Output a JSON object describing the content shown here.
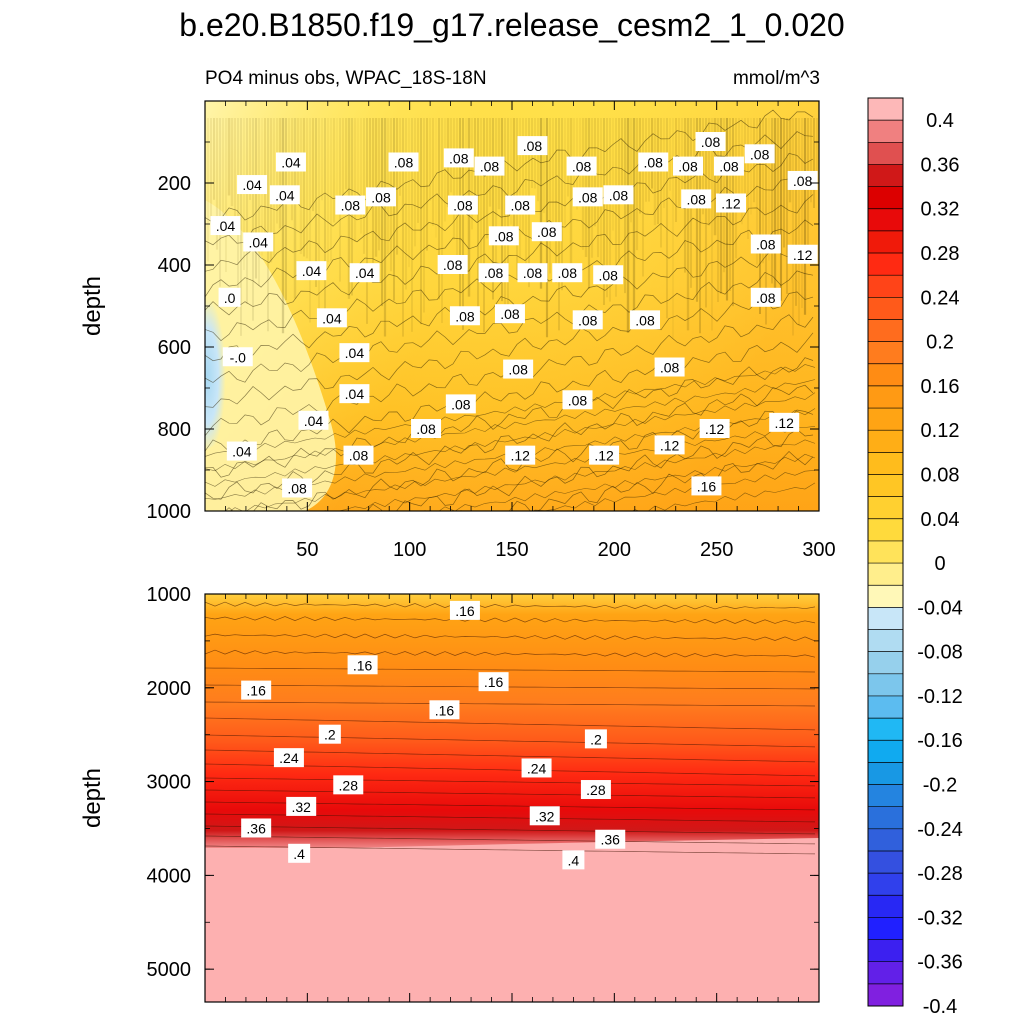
{
  "title": "b.e20.B1850.f19_g17.release_cesm2_1_0.020",
  "chart_data": {
    "type": "heatmap",
    "title": "b.e20.B1850.f19_g17.release_cesm2_1_0.020",
    "subtitle_left": "PO4 minus obs, WPAC_18S-18N",
    "subtitle_right": "mmol/m^3",
    "variable": "PO4 minus obs",
    "region": "WPAC_18S-18N",
    "units": "mmol/m^3",
    "xlim": [
      0,
      300
    ],
    "x_ticks": [
      50,
      100,
      150,
      200,
      250,
      300
    ],
    "x_tick_labels": [
      "50",
      "100",
      "150",
      "200",
      "250",
      "300"
    ],
    "panels": [
      {
        "name": "upper",
        "ylabel": "depth",
        "ylim": [
          0,
          1000
        ],
        "y_ticks": [
          200,
          400,
          600,
          800,
          1000
        ],
        "y_tick_labels": [
          "200",
          "400",
          "600",
          "800",
          "1000"
        ],
        "contour_labels": [
          {
            "text": ".08",
            "x": 247,
            "y": 100
          },
          {
            "text": ".08",
            "x": 160,
            "y": 110
          },
          {
            "text": ".08",
            "x": 271,
            "y": 130
          },
          {
            "text": ".04",
            "x": 42,
            "y": 150
          },
          {
            "text": ".08",
            "x": 97,
            "y": 150
          },
          {
            "text": ".08",
            "x": 124,
            "y": 140
          },
          {
            "text": ".08",
            "x": 139,
            "y": 160
          },
          {
            "text": ".08",
            "x": 184,
            "y": 160
          },
          {
            "text": ".08",
            "x": 219,
            "y": 150
          },
          {
            "text": ".08",
            "x": 236,
            "y": 160
          },
          {
            "text": ".08",
            "x": 256,
            "y": 160
          },
          {
            "text": ".04",
            "x": 23,
            "y": 205
          },
          {
            "text": ".04",
            "x": 39,
            "y": 230
          },
          {
            "text": ".08",
            "x": 71,
            "y": 255
          },
          {
            "text": ".08",
            "x": 86,
            "y": 235
          },
          {
            "text": ".08",
            "x": 126,
            "y": 255
          },
          {
            "text": ".08",
            "x": 154,
            "y": 255
          },
          {
            "text": ".08",
            "x": 187,
            "y": 235
          },
          {
            "text": ".08",
            "x": 202,
            "y": 230
          },
          {
            "text": ".08",
            "x": 240,
            "y": 240
          },
          {
            "text": ".12",
            "x": 257,
            "y": 250
          },
          {
            "text": ".08",
            "x": 292,
            "y": 195
          },
          {
            "text": ".04",
            "x": 10,
            "y": 305
          },
          {
            "text": ".04",
            "x": 26,
            "y": 345
          },
          {
            "text": ".08",
            "x": 146,
            "y": 330
          },
          {
            "text": ".08",
            "x": 167,
            "y": 320
          },
          {
            "text": ".08",
            "x": 274,
            "y": 350
          },
          {
            "text": ".12",
            "x": 292,
            "y": 375
          },
          {
            "text": ".04",
            "x": 52,
            "y": 415
          },
          {
            "text": ".04",
            "x": 78,
            "y": 420
          },
          {
            "text": ".08",
            "x": 121,
            "y": 400
          },
          {
            "text": ".08",
            "x": 141,
            "y": 420
          },
          {
            "text": ".08",
            "x": 160,
            "y": 420
          },
          {
            "text": ".08",
            "x": 177,
            "y": 420
          },
          {
            "text": ".08",
            "x": 197,
            "y": 425
          },
          {
            "text": ".0",
            "x": 12,
            "y": 480
          },
          {
            "text": ".04",
            "x": 62,
            "y": 530
          },
          {
            "text": ".08",
            "x": 127,
            "y": 525
          },
          {
            "text": ".08",
            "x": 149,
            "y": 520
          },
          {
            "text": ".08",
            "x": 187,
            "y": 535
          },
          {
            "text": ".08",
            "x": 215,
            "y": 535
          },
          {
            "text": ".08",
            "x": 274,
            "y": 480
          },
          {
            "text": "-.0",
            "x": 16,
            "y": 625
          },
          {
            "text": ".04",
            "x": 73,
            "y": 615
          },
          {
            "text": ".08",
            "x": 153,
            "y": 655
          },
          {
            "text": ".08",
            "x": 227,
            "y": 650
          },
          {
            "text": ".04",
            "x": 73,
            "y": 715
          },
          {
            "text": ".08",
            "x": 125,
            "y": 740
          },
          {
            "text": ".08",
            "x": 182,
            "y": 730
          },
          {
            "text": ".12",
            "x": 283,
            "y": 785
          },
          {
            "text": ".04",
            "x": 53,
            "y": 780
          },
          {
            "text": ".08",
            "x": 108,
            "y": 800
          },
          {
            "text": ".12",
            "x": 249,
            "y": 800
          },
          {
            "text": ".12",
            "x": 227,
            "y": 840
          },
          {
            "text": ".04",
            "x": 18,
            "y": 855
          },
          {
            "text": ".08",
            "x": 75,
            "y": 865
          },
          {
            "text": ".12",
            "x": 154,
            "y": 865
          },
          {
            "text": ".12",
            "x": 195,
            "y": 865
          },
          {
            "text": ".08",
            "x": 45,
            "y": 945
          },
          {
            "text": ".16",
            "x": 245,
            "y": 940
          }
        ]
      },
      {
        "name": "lower",
        "ylabel": "depth",
        "ylim": [
          1000,
          5350
        ],
        "y_ticks": [
          1000,
          2000,
          3000,
          4000,
          5000
        ],
        "y_tick_labels": [
          "1000",
          "2000",
          "3000",
          "4000",
          "5000"
        ],
        "contour_labels": [
          {
            "text": ".16",
            "x": 127,
            "y": 1180
          },
          {
            "text": ".16",
            "x": 77,
            "y": 1760
          },
          {
            "text": ".16",
            "x": 141,
            "y": 1940
          },
          {
            "text": ".16",
            "x": 25,
            "y": 2030
          },
          {
            "text": ".16",
            "x": 117,
            "y": 2240
          },
          {
            "text": ".2",
            "x": 61,
            "y": 2500
          },
          {
            "text": ".2",
            "x": 191,
            "y": 2550
          },
          {
            "text": ".24",
            "x": 41,
            "y": 2750
          },
          {
            "text": ".24",
            "x": 162,
            "y": 2860
          },
          {
            "text": ".28",
            "x": 70,
            "y": 3040
          },
          {
            "text": ".28",
            "x": 191,
            "y": 3090
          },
          {
            "text": ".32",
            "x": 47,
            "y": 3270
          },
          {
            "text": ".32",
            "x": 166,
            "y": 3370
          },
          {
            "text": ".36",
            "x": 25,
            "y": 3500
          },
          {
            "text": ".36",
            "x": 198,
            "y": 3620
          },
          {
            "text": ".4",
            "x": 46,
            "y": 3770
          },
          {
            "text": ".4",
            "x": 180,
            "y": 3840
          }
        ]
      }
    ],
    "colorbar": {
      "levels": [
        "0.4",
        "0.36",
        "0.32",
        "0.28",
        "0.24",
        "0.2",
        "0.16",
        "0.12",
        "0.08",
        "0.04",
        "0",
        "-0.04",
        "-0.08",
        "-0.12",
        "-0.16",
        "-0.2",
        "-0.24",
        "-0.28",
        "-0.32",
        "-0.36",
        "-0.4"
      ],
      "colors": [
        "#fdb8b8",
        "#f08080",
        "#e05050",
        "#d01818",
        "#dc0000",
        "#e80a0a",
        "#f01a0a",
        "#ff2a12",
        "#ff4418",
        "#ff5a1a",
        "#ff6c1e",
        "#ff7c1e",
        "#ff8c14",
        "#ff9a14",
        "#ffa414",
        "#ffae16",
        "#ffbc1c",
        "#ffc624",
        "#ffd030",
        "#ffda3c",
        "#ffe35a",
        "#ffee8c",
        "#fff8b8",
        "#c8e6f8",
        "#b0dcf2",
        "#96d0ec",
        "#7cc6ec",
        "#5cbcf0",
        "#20b8f4",
        "#10aaf0",
        "#1898e4",
        "#2484e0",
        "#2a70dc",
        "#3060dc",
        "#3450e0",
        "#3040ec",
        "#2828f4",
        "#2020ff",
        "#3c20f0",
        "#6220e8",
        "#8020e0"
      ]
    }
  }
}
